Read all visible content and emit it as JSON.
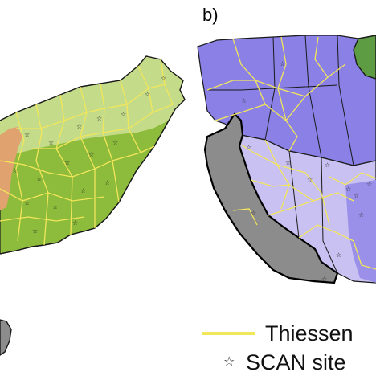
{
  "figure": {
    "panel_b_label": "b)",
    "colors": {
      "thiessen_line": "#f2e65a",
      "state_border": "#1a1a1a",
      "east_green": "#8dbb3b",
      "east_lightgreen": "#c4dc8a",
      "east_orange": "#e0a26f",
      "west_purple": "#8a80e6",
      "west_lavender": "#c9c1f2",
      "west_gray": "#8c8c8c",
      "west_darkgreen": "#5e9c43",
      "site_marker": "#222222"
    }
  },
  "legend": {
    "items": [
      {
        "symbol": "yellow-line",
        "label": "Thiessen"
      },
      {
        "symbol": "star",
        "label": "SCAN site"
      }
    ]
  }
}
